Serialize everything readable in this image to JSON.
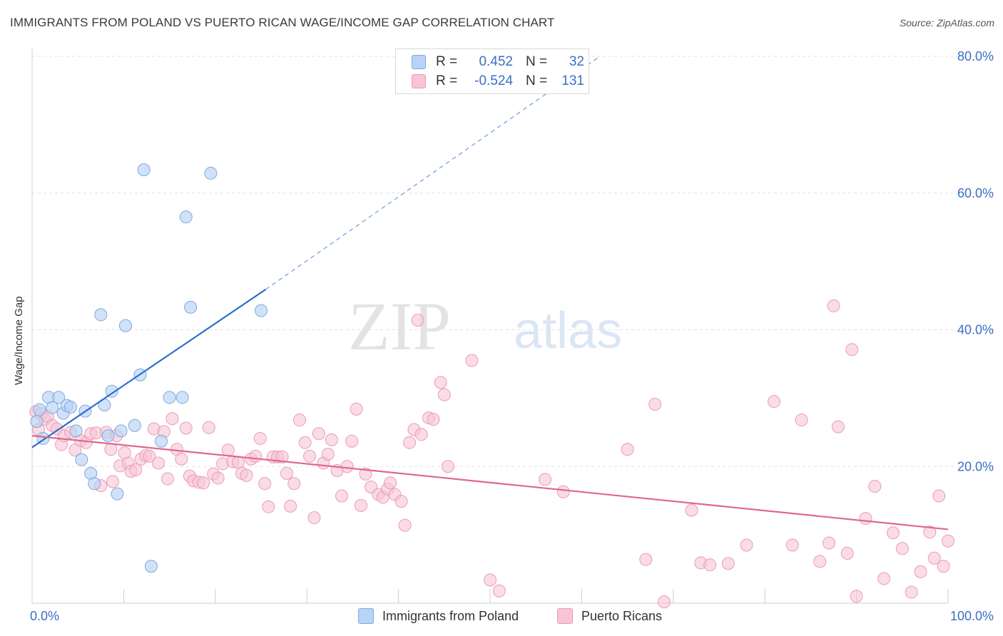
{
  "header": {
    "title": "IMMIGRANTS FROM POLAND VS PUERTO RICAN WAGE/INCOME GAP CORRELATION CHART",
    "source": "Source: ZipAtlas.com"
  },
  "legend": {
    "rows": [
      {
        "r_label": "R =",
        "r_value": "0.452",
        "n_label": "N =",
        "n_value": "32"
      },
      {
        "r_label": "R =",
        "r_value": "-0.524",
        "n_label": "N =",
        "n_value": "131"
      }
    ]
  },
  "bottom_legend": {
    "poland": "Immigrants from Poland",
    "puerto": "Puerto Ricans"
  },
  "watermark": {
    "zip": "ZIP",
    "atlas": "atlas"
  },
  "colors": {
    "poland_fill": "#b9d3f5",
    "poland_stroke": "#7ea8de",
    "poland_line": "#2f6fcc",
    "puerto_fill": "#f7c5d5",
    "puerto_stroke": "#eb9bb6",
    "puerto_line": "#e0668e",
    "tick_label": "#3a6fc4"
  },
  "chart_data": {
    "type": "scatter",
    "title": "IMMIGRANTS FROM POLAND VS PUERTO RICAN WAGE/INCOME GAP CORRELATION CHART",
    "xlabel": "",
    "ylabel": "Wage/Income Gap",
    "xlim": [
      0,
      100
    ],
    "ylim": [
      0,
      80
    ],
    "x_tick_labels": [
      "0.0%",
      "100.0%"
    ],
    "y_ticks": [
      20,
      40,
      60,
      80
    ],
    "y_tick_labels": [
      "20.0%",
      "40.0%",
      "60.0%",
      "80.0%"
    ],
    "grid": true,
    "legend_position": "top-center",
    "series": [
      {
        "name": "Immigrants from Poland",
        "points": [
          [
            0.5,
            26.6
          ],
          [
            0.8,
            28.3
          ],
          [
            1.2,
            24.1
          ],
          [
            1.8,
            30.1
          ],
          [
            2.2,
            28.6
          ],
          [
            2.9,
            30.1
          ],
          [
            3.4,
            27.8
          ],
          [
            3.8,
            28.9
          ],
          [
            4.2,
            28.7
          ],
          [
            4.8,
            25.2
          ],
          [
            5.4,
            21.0
          ],
          [
            5.8,
            28.1
          ],
          [
            6.4,
            19.0
          ],
          [
            6.8,
            17.5
          ],
          [
            7.5,
            42.2
          ],
          [
            7.9,
            29.0
          ],
          [
            8.3,
            24.5
          ],
          [
            8.7,
            31.0
          ],
          [
            9.3,
            16.0
          ],
          [
            9.7,
            25.2
          ],
          [
            10.2,
            40.6
          ],
          [
            11.2,
            26.0
          ],
          [
            11.8,
            33.4
          ],
          [
            12.2,
            63.4
          ],
          [
            13.0,
            5.4
          ],
          [
            14.1,
            23.7
          ],
          [
            15.0,
            30.1
          ],
          [
            16.4,
            30.1
          ],
          [
            16.8,
            56.5
          ],
          [
            17.3,
            43.3
          ],
          [
            19.5,
            62.9
          ],
          [
            25.0,
            42.8
          ]
        ]
      },
      {
        "name": "Puerto Ricans",
        "points": [
          [
            0.4,
            28.0
          ],
          [
            0.7,
            25.4
          ],
          [
            1.0,
            27.7
          ],
          [
            1.4,
            26.9
          ],
          [
            1.7,
            27.3
          ],
          [
            2.2,
            26.0
          ],
          [
            2.7,
            25.5
          ],
          [
            3.2,
            23.2
          ],
          [
            3.5,
            24.5
          ],
          [
            4.2,
            25.0
          ],
          [
            4.7,
            22.4
          ],
          [
            5.3,
            23.8
          ],
          [
            5.9,
            23.5
          ],
          [
            6.4,
            24.8
          ],
          [
            7.0,
            24.9
          ],
          [
            7.5,
            17.2
          ],
          [
            8.1,
            25.0
          ],
          [
            8.6,
            22.5
          ],
          [
            8.8,
            17.8
          ],
          [
            9.2,
            24.5
          ],
          [
            9.6,
            20.1
          ],
          [
            10.1,
            22.0
          ],
          [
            10.5,
            20.5
          ],
          [
            10.8,
            19.3
          ],
          [
            11.3,
            19.5
          ],
          [
            11.9,
            21.1
          ],
          [
            12.4,
            21.6
          ],
          [
            12.8,
            21.5
          ],
          [
            13.3,
            25.5
          ],
          [
            13.8,
            20.5
          ],
          [
            14.4,
            25.1
          ],
          [
            14.8,
            18.2
          ],
          [
            15.3,
            27.0
          ],
          [
            15.8,
            22.5
          ],
          [
            16.3,
            21.1
          ],
          [
            16.8,
            25.6
          ],
          [
            17.2,
            18.6
          ],
          [
            17.6,
            17.9
          ],
          [
            18.2,
            17.7
          ],
          [
            18.7,
            17.6
          ],
          [
            19.3,
            25.7
          ],
          [
            19.8,
            18.9
          ],
          [
            20.3,
            18.3
          ],
          [
            20.8,
            20.4
          ],
          [
            21.4,
            22.4
          ],
          [
            21.9,
            20.7
          ],
          [
            22.5,
            20.6
          ],
          [
            22.9,
            19.0
          ],
          [
            23.4,
            18.7
          ],
          [
            23.9,
            21.1
          ],
          [
            24.4,
            21.5
          ],
          [
            24.9,
            24.1
          ],
          [
            25.4,
            17.5
          ],
          [
            25.8,
            14.1
          ],
          [
            26.3,
            21.4
          ],
          [
            26.8,
            21.4
          ],
          [
            27.3,
            21.4
          ],
          [
            27.8,
            19.0
          ],
          [
            28.2,
            14.2
          ],
          [
            28.6,
            17.5
          ],
          [
            29.2,
            26.8
          ],
          [
            29.8,
            23.5
          ],
          [
            30.3,
            21.5
          ],
          [
            30.8,
            12.5
          ],
          [
            31.3,
            24.8
          ],
          [
            31.8,
            20.5
          ],
          [
            32.3,
            21.8
          ],
          [
            32.7,
            23.9
          ],
          [
            33.3,
            19.4
          ],
          [
            33.8,
            15.7
          ],
          [
            34.4,
            20.0
          ],
          [
            34.9,
            23.7
          ],
          [
            35.4,
            28.4
          ],
          [
            35.9,
            14.3
          ],
          [
            36.4,
            18.9
          ],
          [
            37.0,
            17.0
          ],
          [
            37.8,
            15.9
          ],
          [
            38.3,
            15.5
          ],
          [
            38.8,
            16.7
          ],
          [
            39.1,
            17.6
          ],
          [
            39.6,
            15.9
          ],
          [
            40.3,
            14.9
          ],
          [
            40.7,
            11.4
          ],
          [
            41.2,
            23.5
          ],
          [
            41.7,
            25.4
          ],
          [
            42.1,
            41.4
          ],
          [
            42.5,
            24.7
          ],
          [
            43.3,
            27.1
          ],
          [
            43.8,
            26.9
          ],
          [
            44.6,
            32.3
          ],
          [
            45.0,
            30.5
          ],
          [
            45.4,
            20.0
          ],
          [
            48.0,
            35.5
          ],
          [
            50.0,
            3.4
          ],
          [
            51.0,
            1.8
          ],
          [
            56.0,
            18.1
          ],
          [
            58.0,
            16.3
          ],
          [
            65.0,
            22.5
          ],
          [
            67.0,
            6.4
          ],
          [
            68.0,
            29.1
          ],
          [
            69.0,
            0.2
          ],
          [
            72.0,
            13.6
          ],
          [
            73.0,
            5.9
          ],
          [
            74.0,
            5.6
          ],
          [
            76.0,
            5.8
          ],
          [
            78.0,
            8.5
          ],
          [
            81.0,
            29.5
          ],
          [
            83.0,
            8.5
          ],
          [
            84.0,
            26.8
          ],
          [
            86.0,
            6.1
          ],
          [
            87.0,
            8.8
          ],
          [
            87.5,
            43.5
          ],
          [
            88.0,
            25.8
          ],
          [
            89.0,
            7.3
          ],
          [
            89.5,
            37.1
          ],
          [
            90.0,
            1.0
          ],
          [
            91.0,
            12.4
          ],
          [
            92.0,
            17.1
          ],
          [
            93.0,
            3.6
          ],
          [
            94.0,
            10.3
          ],
          [
            95.0,
            8.0
          ],
          [
            96.0,
            1.6
          ],
          [
            97.0,
            4.6
          ],
          [
            98.0,
            10.4
          ],
          [
            98.5,
            6.6
          ],
          [
            99.0,
            15.7
          ],
          [
            99.5,
            5.4
          ],
          [
            100.0,
            9.1
          ]
        ]
      }
    ],
    "trend_lines": [
      {
        "series": "Immigrants from Poland",
        "x1": 0,
        "y1": 22.8,
        "x2": 25.5,
        "y2": 45.9,
        "dashed_to_x": 62.0,
        "dashed_to_y": 80.0
      },
      {
        "series": "Puerto Ricans",
        "x1": 0,
        "y1": 24.5,
        "x2": 100,
        "y2": 10.8
      }
    ]
  }
}
